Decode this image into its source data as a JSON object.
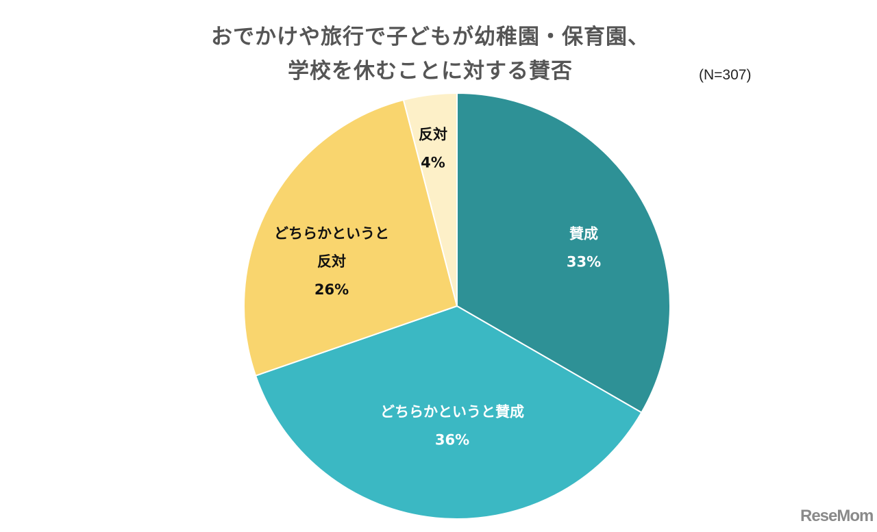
{
  "chart_data": {
    "type": "pie",
    "title": [
      "おでかけや旅行で子どもが幼稚園・保育園、",
      "学校を休むことに対する賛否"
    ],
    "sample_note": "(N=307)",
    "start": "top",
    "direction": "clockwise",
    "slices": [
      {
        "label": [
          "賛成"
        ],
        "value": 33,
        "value_label": "33%",
        "color": "#2E9196",
        "text_color": "#ffffff"
      },
      {
        "label": [
          "どちらかというと賛成"
        ],
        "value": 36,
        "value_label": "36%",
        "color": "#3BB8C3",
        "text_color": "#ffffff"
      },
      {
        "label": [
          "どちらかというと",
          "反対"
        ],
        "value": 26,
        "value_label": "26%",
        "color": "#F9D56E",
        "text_color": "#111111"
      },
      {
        "label": [
          "反対"
        ],
        "value": 4,
        "value_label": "4%",
        "color": "#FDF0C8",
        "text_color": "#111111"
      }
    ]
  },
  "watermark": "ReseMom"
}
